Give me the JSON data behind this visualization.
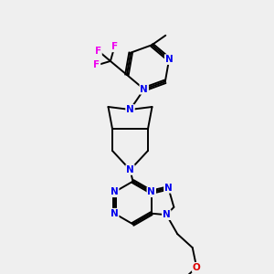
{
  "background_color": "#efefef",
  "bond_color": "#000000",
  "N_color": "#0000ee",
  "F_color": "#ee00ee",
  "O_color": "#dd0000",
  "bond_width": 1.4,
  "figsize": [
    3.0,
    3.0
  ],
  "dpi": 100,
  "xlim": [
    0,
    10
  ],
  "ylim": [
    0,
    10
  ]
}
